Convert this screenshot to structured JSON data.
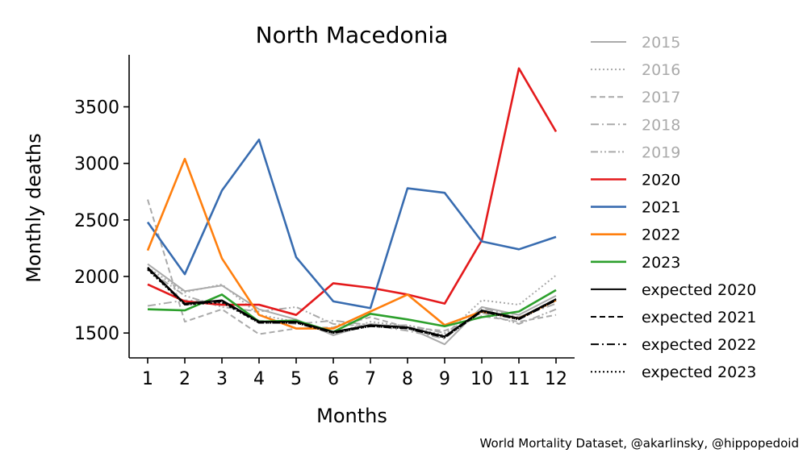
{
  "chart_data": {
    "type": "line",
    "title": "North Macedonia",
    "xlabel": "Months",
    "ylabel": "Monthly deaths",
    "source": "World Mortality Dataset, @akarlinsky, @hippopedoid",
    "x": [
      1,
      2,
      3,
      4,
      5,
      6,
      7,
      8,
      9,
      10,
      11,
      12
    ],
    "xlim": [
      0.5,
      12.5
    ],
    "ylim": [
      1280,
      3960
    ],
    "yticks": [
      1500,
      2000,
      2500,
      3000,
      3500
    ],
    "grid": false,
    "legend_position": "right, outside plot",
    "series": [
      {
        "name": "2015",
        "color": "#aaaaaa",
        "style": "solid",
        "values": [
          2110,
          1870,
          1920,
          1710,
          1620,
          1480,
          1580,
          1550,
          1400,
          1730,
          1660,
          1830
        ]
      },
      {
        "name": "2016",
        "color": "#aaaaaa",
        "style": "dotted",
        "values": [
          2080,
          1860,
          1930,
          1660,
          1600,
          1490,
          1600,
          1560,
          1480,
          1790,
          1750,
          2010
        ]
      },
      {
        "name": "2017",
        "color": "#aaaaaa",
        "style": "dashed",
        "values": [
          2680,
          1600,
          1710,
          1490,
          1540,
          1550,
          1640,
          1550,
          1520,
          1650,
          1600,
          1660
        ]
      },
      {
        "name": "2018",
        "color": "#aaaaaa",
        "style": "dashdot",
        "values": [
          1740,
          1790,
          1770,
          1610,
          1580,
          1610,
          1570,
          1520,
          1450,
          1720,
          1640,
          1760
        ]
      },
      {
        "name": "2019",
        "color": "#aaaaaa",
        "style": "dashdotdot",
        "values": [
          2060,
          1830,
          1730,
          1690,
          1730,
          1580,
          1560,
          1570,
          1500,
          1680,
          1580,
          1710
        ]
      },
      {
        "name": "2020",
        "color": "#e41a1c",
        "style": "solid",
        "values": [
          1930,
          1780,
          1750,
          1750,
          1660,
          1940,
          1900,
          1840,
          1760,
          2320,
          3840,
          3280
        ]
      },
      {
        "name": "2021",
        "color": "#386cb0",
        "style": "solid",
        "values": [
          2480,
          2020,
          2760,
          3210,
          2170,
          1780,
          1720,
          2780,
          2740,
          2310,
          2240,
          2350
        ]
      },
      {
        "name": "2022",
        "color": "#ff7f0e",
        "style": "solid",
        "values": [
          2230,
          3040,
          2160,
          1660,
          1540,
          1540,
          1690,
          1840,
          1570,
          1690,
          1630,
          1790
        ]
      },
      {
        "name": "2023",
        "color": "#2ca02c",
        "style": "solid",
        "values": [
          1710,
          1700,
          1840,
          1600,
          1610,
          1510,
          1670,
          1620,
          1560,
          1640,
          1690,
          1880
        ]
      },
      {
        "name": "expected 2020",
        "color": "#000000",
        "style": "solid",
        "values": [
          2080,
          1760,
          1790,
          1600,
          1600,
          1510,
          1570,
          1550,
          1470,
          1700,
          1630,
          1800
        ]
      },
      {
        "name": "expected 2021",
        "color": "#000000",
        "style": "dashed",
        "values": [
          2070,
          1760,
          1780,
          1600,
          1600,
          1510,
          1570,
          1550,
          1470,
          1700,
          1630,
          1800
        ]
      },
      {
        "name": "expected 2022",
        "color": "#000000",
        "style": "dashdot",
        "values": [
          2070,
          1750,
          1780,
          1590,
          1590,
          1500,
          1560,
          1540,
          1460,
          1690,
          1620,
          1790
        ]
      },
      {
        "name": "expected 2023",
        "color": "#000000",
        "style": "dotted",
        "values": [
          2060,
          1750,
          1770,
          1590,
          1590,
          1500,
          1560,
          1540,
          1460,
          1690,
          1620,
          1790
        ]
      }
    ]
  }
}
